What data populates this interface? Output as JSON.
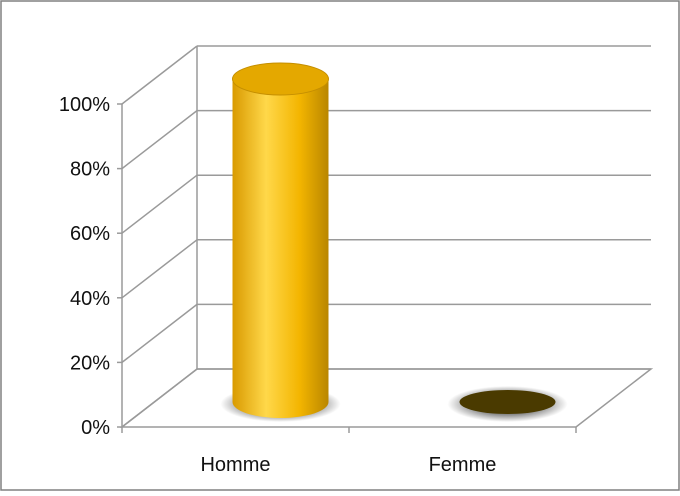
{
  "chart_data": {
    "type": "bar",
    "subtype": "3d-cylinder",
    "categories": [
      "Homme",
      "Femme"
    ],
    "values": [
      100,
      0
    ],
    "y_tick_labels": [
      "0%",
      "20%",
      "40%",
      "60%",
      "80%",
      "100%"
    ],
    "ylim": [
      0,
      100
    ],
    "grid": true,
    "legend": "none",
    "title": "",
    "xlabel": "",
    "ylabel": ""
  },
  "colors": {
    "bar_face": "#f6bb00",
    "bar_highlight": "#ffd84a",
    "bar_shade": "#b98600",
    "bar_top": "#e4a800",
    "empty_bar": "#4a3a00",
    "grid": "#9a9a9a",
    "frame_border": "#808080"
  }
}
